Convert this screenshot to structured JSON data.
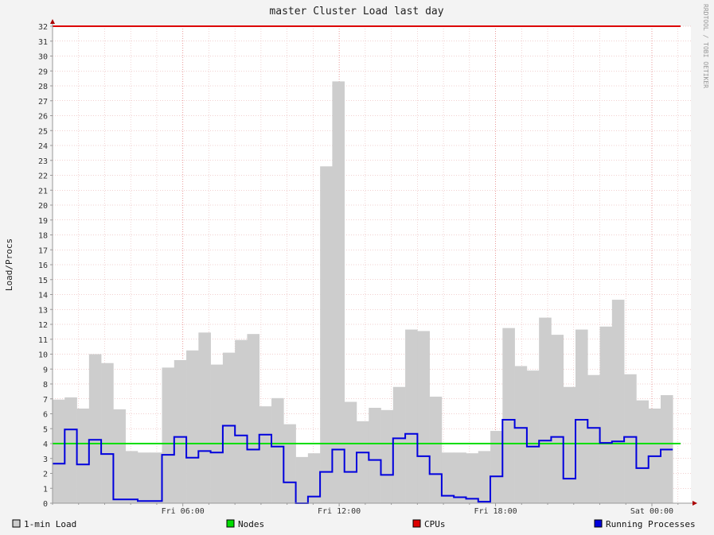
{
  "watermark": "RRDTOOL / TOBI OETIKER",
  "chart_data": {
    "type": "area",
    "title": "master Cluster Load last day",
    "ylabel": "Load/Procs",
    "xlabel": "",
    "ylim": [
      0,
      32
    ],
    "y_ticks": [
      0,
      1,
      2,
      3,
      4,
      5,
      6,
      7,
      8,
      9,
      10,
      11,
      12,
      13,
      14,
      15,
      16,
      17,
      18,
      19,
      20,
      21,
      22,
      23,
      24,
      25,
      26,
      27,
      28,
      29,
      30,
      31,
      32
    ],
    "x_range_hours": [
      0,
      24.1
    ],
    "x_ticks": [
      {
        "label": "Fri 06:00",
        "hour": 5
      },
      {
        "label": "Fri 12:00",
        "hour": 11
      },
      {
        "label": "Fri 18:00",
        "hour": 17
      },
      {
        "label": "Sat 00:00",
        "hour": 23
      }
    ],
    "bin_hours": 0.4667,
    "grid": true,
    "legend_position": "bottom",
    "series": [
      {
        "name": "1-min Load",
        "kind": "area",
        "color": "#cdcdcd",
        "values": [
          6.95,
          7.1,
          6.35,
          10.0,
          9.4,
          6.3,
          3.5,
          3.4,
          3.4,
          9.1,
          9.6,
          10.25,
          11.45,
          9.3,
          10.1,
          10.95,
          11.35,
          6.5,
          7.05,
          5.3,
          3.1,
          3.35,
          22.6,
          28.3,
          6.8,
          5.5,
          6.4,
          6.25,
          7.8,
          11.65,
          11.55,
          7.15,
          3.4,
          3.4,
          3.35,
          3.5,
          4.85,
          11.75,
          9.2,
          8.9,
          12.45,
          11.3,
          7.8,
          11.65,
          8.6,
          11.85,
          13.65,
          8.65,
          6.9,
          6.35,
          7.25
        ]
      },
      {
        "name": "Nodes",
        "kind": "line",
        "color": "#00dd00",
        "value": 4
      },
      {
        "name": "CPUs",
        "kind": "line",
        "color": "#dd0000",
        "value": 32
      },
      {
        "name": "Running Processes",
        "kind": "step",
        "color": "#0000dd",
        "values": [
          2.65,
          4.95,
          2.6,
          4.25,
          3.3,
          0.25,
          0.25,
          0.15,
          0.15,
          3.25,
          4.45,
          3.05,
          3.5,
          3.4,
          5.2,
          4.55,
          3.6,
          4.6,
          3.8,
          1.4,
          0.0,
          0.45,
          2.1,
          3.6,
          2.1,
          3.4,
          2.9,
          1.9,
          4.35,
          4.65,
          3.15,
          1.95,
          0.5,
          0.4,
          0.3,
          0.1,
          1.8,
          5.6,
          5.05,
          3.8,
          4.2,
          4.45,
          1.65,
          5.6,
          5.05,
          4.05,
          4.15,
          4.45,
          2.35,
          3.15,
          3.6
        ]
      }
    ]
  }
}
